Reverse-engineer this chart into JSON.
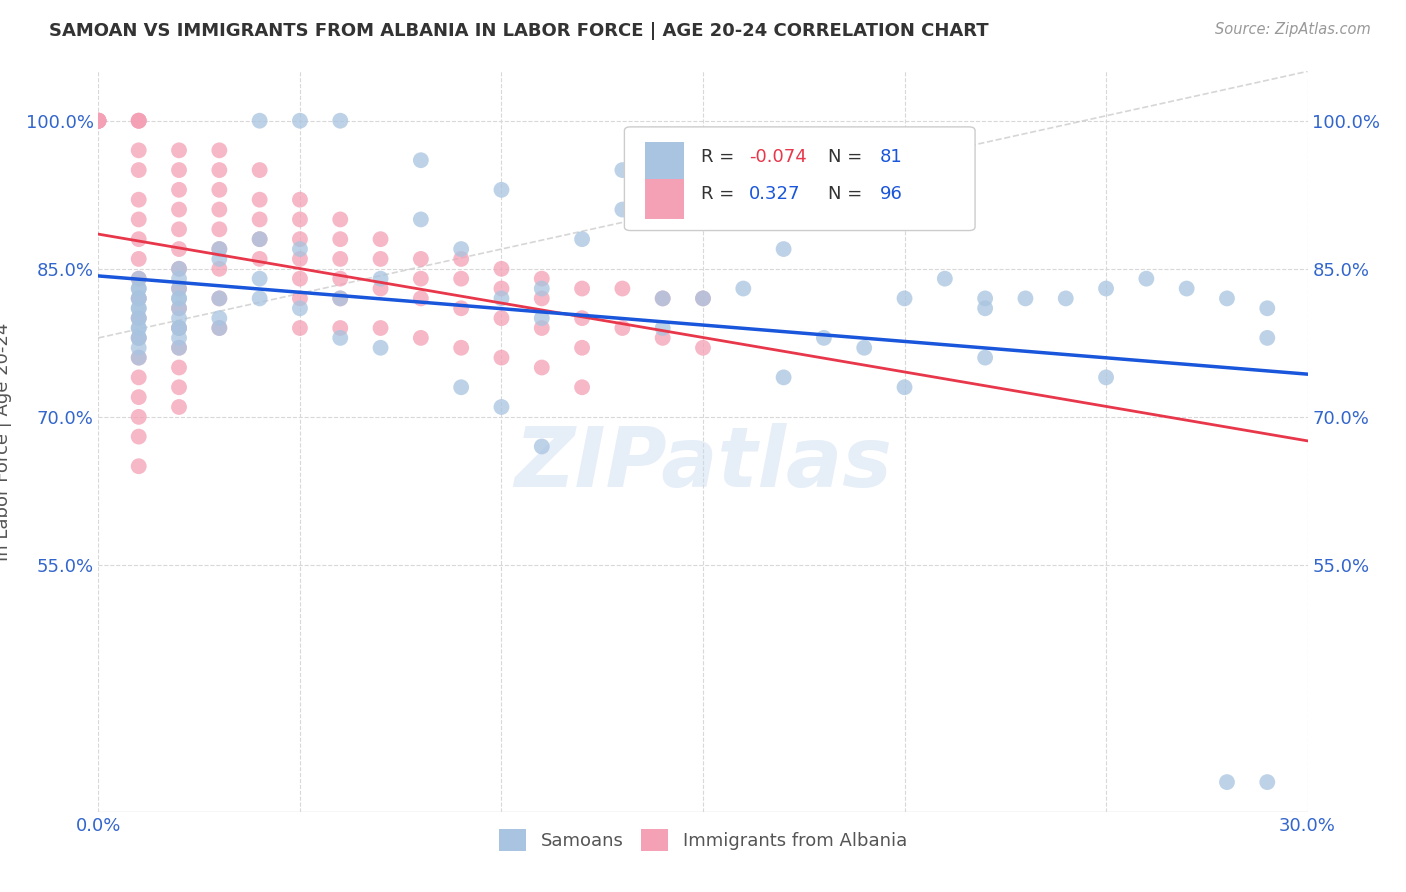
{
  "title": "SAMOAN VS IMMIGRANTS FROM ALBANIA IN LABOR FORCE | AGE 20-24 CORRELATION CHART",
  "source": "Source: ZipAtlas.com",
  "ylabel": "In Labor Force | Age 20-24",
  "xlim": [
    0.0,
    0.3
  ],
  "ylim": [
    0.3,
    1.05
  ],
  "yticks": [
    1.0,
    0.85,
    0.7,
    0.55
  ],
  "ytick_labels": [
    "100.0%",
    "85.0%",
    "70.0%",
    "55.0%"
  ],
  "xticks": [
    0.0,
    0.05,
    0.1,
    0.15,
    0.2,
    0.25,
    0.3
  ],
  "background_color": "#ffffff",
  "watermark_text": "ZIPatlas",
  "blue_color": "#a8c4e0",
  "pink_color": "#f4a0b5",
  "trend_blue_color": "#1a56db",
  "trend_pink_color": "#e8374a",
  "grid_color": "#d8d8d8",
  "samoans_x": [
    0.01,
    0.01,
    0.01,
    0.01,
    0.01,
    0.01,
    0.01,
    0.01,
    0.01,
    0.01,
    0.01,
    0.01,
    0.01,
    0.01,
    0.01,
    0.02,
    0.02,
    0.02,
    0.02,
    0.02,
    0.02,
    0.02,
    0.02,
    0.02,
    0.02,
    0.02,
    0.03,
    0.03,
    0.03,
    0.03,
    0.03,
    0.04,
    0.04,
    0.04,
    0.05,
    0.05,
    0.06,
    0.06,
    0.07,
    0.07,
    0.08,
    0.09,
    0.1,
    0.1,
    0.11,
    0.11,
    0.12,
    0.13,
    0.14,
    0.15,
    0.16,
    0.17,
    0.18,
    0.19,
    0.2,
    0.21,
    0.22,
    0.22,
    0.23,
    0.24,
    0.25,
    0.26,
    0.27,
    0.28,
    0.29,
    0.29,
    0.14,
    0.1,
    0.09,
    0.17,
    0.22,
    0.2,
    0.25,
    0.11,
    0.05,
    0.06,
    0.04,
    0.08,
    0.13,
    0.28,
    0.29
  ],
  "samoans_y": [
    0.83,
    0.82,
    0.81,
    0.8,
    0.79,
    0.78,
    0.77,
    0.76,
    0.82,
    0.81,
    0.8,
    0.79,
    0.78,
    0.84,
    0.83,
    0.82,
    0.81,
    0.8,
    0.79,
    0.78,
    0.77,
    0.85,
    0.84,
    0.83,
    0.82,
    0.79,
    0.87,
    0.86,
    0.82,
    0.8,
    0.79,
    0.88,
    0.84,
    0.82,
    0.87,
    0.81,
    0.82,
    0.78,
    0.84,
    0.77,
    0.9,
    0.87,
    0.93,
    0.82,
    0.83,
    0.8,
    0.88,
    0.91,
    0.82,
    0.82,
    0.83,
    0.87,
    0.78,
    0.77,
    0.82,
    0.84,
    0.82,
    0.81,
    0.82,
    0.82,
    0.83,
    0.84,
    0.83,
    0.82,
    0.81,
    0.78,
    0.79,
    0.71,
    0.73,
    0.74,
    0.76,
    0.73,
    0.74,
    0.67,
    1.0,
    1.0,
    1.0,
    0.96,
    0.95,
    0.33,
    0.33
  ],
  "albania_x": [
    0.0,
    0.0,
    0.0,
    0.0,
    0.0,
    0.0,
    0.01,
    0.01,
    0.01,
    0.01,
    0.01,
    0.01,
    0.01,
    0.01,
    0.01,
    0.01,
    0.01,
    0.01,
    0.01,
    0.01,
    0.01,
    0.01,
    0.01,
    0.01,
    0.01,
    0.02,
    0.02,
    0.02,
    0.02,
    0.02,
    0.02,
    0.02,
    0.02,
    0.02,
    0.02,
    0.02,
    0.02,
    0.02,
    0.02,
    0.03,
    0.03,
    0.03,
    0.03,
    0.03,
    0.03,
    0.03,
    0.03,
    0.03,
    0.04,
    0.04,
    0.04,
    0.04,
    0.04,
    0.05,
    0.05,
    0.05,
    0.05,
    0.05,
    0.05,
    0.05,
    0.06,
    0.06,
    0.06,
    0.06,
    0.06,
    0.06,
    0.07,
    0.07,
    0.07,
    0.07,
    0.08,
    0.08,
    0.08,
    0.08,
    0.09,
    0.09,
    0.09,
    0.09,
    0.1,
    0.1,
    0.1,
    0.1,
    0.11,
    0.11,
    0.11,
    0.11,
    0.12,
    0.12,
    0.12,
    0.12,
    0.13,
    0.13,
    0.14,
    0.14,
    0.15,
    0.15
  ],
  "albania_y": [
    1.0,
    1.0,
    1.0,
    1.0,
    1.0,
    1.0,
    1.0,
    1.0,
    1.0,
    0.97,
    0.95,
    0.92,
    0.9,
    0.88,
    0.86,
    0.84,
    0.82,
    0.8,
    0.78,
    0.76,
    0.74,
    0.72,
    0.7,
    0.68,
    0.65,
    0.97,
    0.95,
    0.93,
    0.91,
    0.89,
    0.87,
    0.85,
    0.83,
    0.81,
    0.79,
    0.77,
    0.75,
    0.73,
    0.71,
    0.97,
    0.95,
    0.93,
    0.91,
    0.89,
    0.87,
    0.85,
    0.82,
    0.79,
    0.95,
    0.92,
    0.9,
    0.88,
    0.86,
    0.92,
    0.9,
    0.88,
    0.86,
    0.84,
    0.82,
    0.79,
    0.9,
    0.88,
    0.86,
    0.84,
    0.82,
    0.79,
    0.88,
    0.86,
    0.83,
    0.79,
    0.86,
    0.84,
    0.82,
    0.78,
    0.86,
    0.84,
    0.81,
    0.77,
    0.85,
    0.83,
    0.8,
    0.76,
    0.84,
    0.82,
    0.79,
    0.75,
    0.83,
    0.8,
    0.77,
    0.73,
    0.83,
    0.79,
    0.82,
    0.78,
    0.82,
    0.77
  ]
}
